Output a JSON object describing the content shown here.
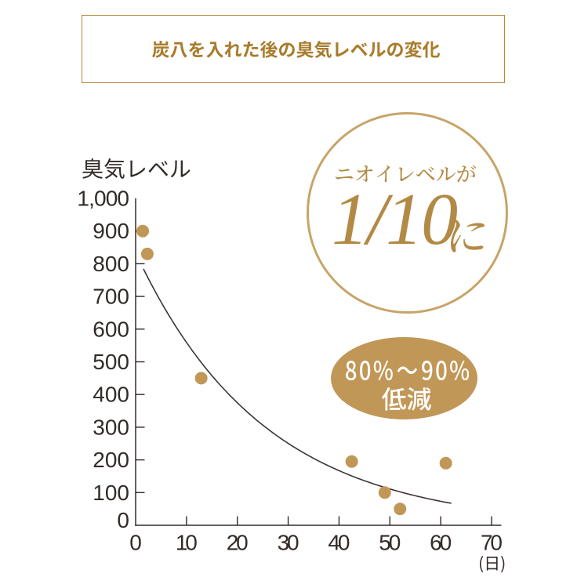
{
  "page": {
    "background": "#ffffff"
  },
  "header": {
    "title": "炭八を入れた後の臭気レベルの変化"
  },
  "chart_data": {
    "type": "scatter",
    "title": "炭八を入れた後の臭気レベルの変化",
    "y_axis": {
      "label": "臭気レベル",
      "min": 0,
      "max": 1000,
      "tick_step": 100,
      "tick_labels": [
        "0",
        "100",
        "200",
        "300",
        "400",
        "500",
        "600",
        "700",
        "800",
        "900",
        "1,000"
      ]
    },
    "x_axis": {
      "unit": "(日)",
      "min": 0,
      "max": 70,
      "tick_step": 10,
      "tick_labels": [
        "0",
        "10",
        "20",
        "30",
        "40",
        "50",
        "60",
        "70"
      ]
    },
    "points": [
      [
        1.4,
        900
      ],
      [
        2.3,
        830
      ],
      [
        12.9,
        450
      ],
      [
        42.5,
        195
      ],
      [
        49,
        100
      ],
      [
        52,
        50
      ],
      [
        61,
        190
      ]
    ],
    "trend_curve": {
      "model": "exponential",
      "formula": "y = 838 * exp(-0.0397 * x) - 4.1",
      "a": 838,
      "b": 0.0397,
      "c": -4.1,
      "x_start": 1.54,
      "x_end": 62.1
    },
    "grid": false,
    "legend": null,
    "colors": {
      "point": "#c19757",
      "axis": "#322b28",
      "curve": "#3c3533"
    }
  },
  "badges": {
    "circle": {
      "line1": "ニオイレベルが",
      "fraction": "1/10",
      "suffix": "に",
      "full_text": "ニオイレベルが1/10に",
      "ring_color": "#c8a469",
      "text_color": "#b28a45"
    },
    "ellipse": {
      "line1": "80%〜90%",
      "line2": "低減",
      "full_text": "80%〜90%低減",
      "fill_color": "#c19757",
      "text_color": "#ffffff"
    }
  }
}
